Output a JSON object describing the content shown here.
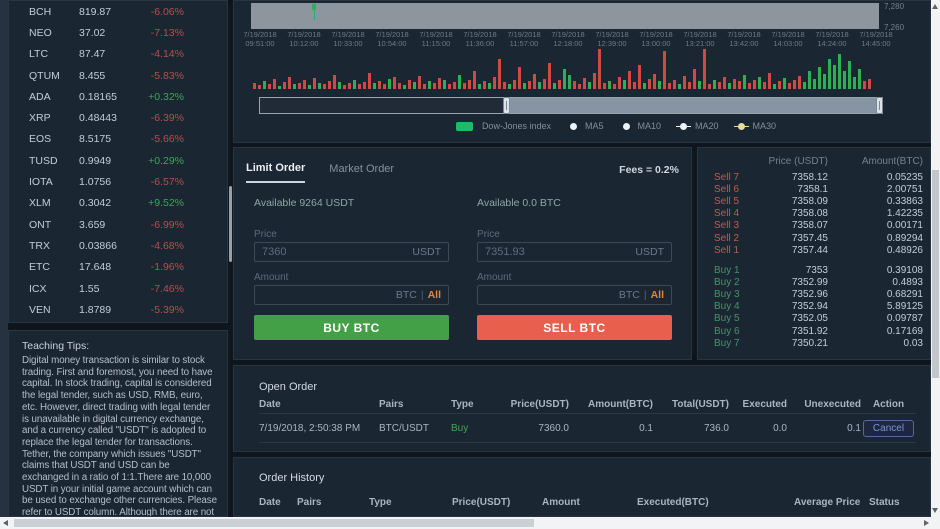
{
  "colors": {
    "up": "#2fae54",
    "down": "#cf4a43",
    "buy_button": "#43a047",
    "sell_button": "#e95f4d",
    "accent_orange": "#e0863a",
    "index_green": "#25b864",
    "cancel_blue": "#7d94d4"
  },
  "sidebar": {
    "coins": [
      {
        "symbol": "BCH",
        "price": "819.87",
        "change": "-6.06%",
        "dir": "down"
      },
      {
        "symbol": "NEO",
        "price": "37.02",
        "change": "-7.13%",
        "dir": "down"
      },
      {
        "symbol": "LTC",
        "price": "87.47",
        "change": "-4.14%",
        "dir": "down"
      },
      {
        "symbol": "QTUM",
        "price": "8.455",
        "change": "-5.83%",
        "dir": "down"
      },
      {
        "symbol": "ADA",
        "price": "0.18165",
        "change": "+0.32%",
        "dir": "up"
      },
      {
        "symbol": "XRP",
        "price": "0.48443",
        "change": "-6.39%",
        "dir": "down"
      },
      {
        "symbol": "EOS",
        "price": "8.5175",
        "change": "-5.66%",
        "dir": "down"
      },
      {
        "symbol": "TUSD",
        "price": "0.9949",
        "change": "+0.29%",
        "dir": "up"
      },
      {
        "symbol": "IOTA",
        "price": "1.0756",
        "change": "-6.57%",
        "dir": "down"
      },
      {
        "symbol": "XLM",
        "price": "0.3042",
        "change": "+9.52%",
        "dir": "up"
      },
      {
        "symbol": "ONT",
        "price": "3.659",
        "change": "-6.99%",
        "dir": "down"
      },
      {
        "symbol": "TRX",
        "price": "0.03866",
        "change": "-4.68%",
        "dir": "down"
      },
      {
        "symbol": "ETC",
        "price": "17.648",
        "change": "-1.96%",
        "dir": "down"
      },
      {
        "symbol": "ICX",
        "price": "1.55",
        "change": "-7.46%",
        "dir": "down"
      },
      {
        "symbol": "VEN",
        "price": "1.8789",
        "change": "-5.39%",
        "dir": "down"
      }
    ],
    "tips_title": "Teaching Tips:",
    "tips_body": "Digital money transaction is similar to stock trading. First and foremost, you need to have capital. In stock trading, capital is considered the legal tender, such as USD, RMB, euro, etc. However, direct trading with legal tender is unavailable in digital currency exchange, and a currency called \"USDT\" is adopted to replace the legal tender for transactions. Tether, the company which issues \"USDT\" claims that USDT and USD can be exchanged in a ratio of 1:1.There are 10,000 USDT in your initial game account which can be used to exchange other currencies. Please refer to USDT column. Although there are not many kinds of currencies in USDT column, most are very popular ones. What should you do if you need to buy some"
  },
  "chart": {
    "y_labels": [
      "7,280",
      "7,260"
    ],
    "x_ticks": [
      {
        "date": "7/19/2018",
        "time": "09:51:00"
      },
      {
        "date": "7/19/2018",
        "time": "10:12:00"
      },
      {
        "date": "7/19/2018",
        "time": "10:33:00"
      },
      {
        "date": "7/19/2018",
        "time": "10:54:00"
      },
      {
        "date": "7/19/2018",
        "time": "11:15:00"
      },
      {
        "date": "7/19/2018",
        "time": "11:36:00"
      },
      {
        "date": "7/19/2018",
        "time": "11:57:00"
      },
      {
        "date": "7/19/2018",
        "time": "12:18:00"
      },
      {
        "date": "7/19/2018",
        "time": "12:39:00"
      },
      {
        "date": "7/19/2018",
        "time": "13:00:00"
      },
      {
        "date": "7/19/2018",
        "time": "13:21:00"
      },
      {
        "date": "7/19/2018",
        "time": "13:42:00"
      },
      {
        "date": "7/19/2018",
        "time": "14:03:00"
      },
      {
        "date": "7/19/2018",
        "time": "14:24:00"
      },
      {
        "date": "7/19/2018",
        "time": "14:45:00"
      }
    ],
    "legend": {
      "index_label": "Dow-Jones index",
      "ma_items": [
        {
          "label": "MA5",
          "color": "#eef2f6",
          "line": false
        },
        {
          "label": "MA10",
          "color": "#eef2f6",
          "line": false
        },
        {
          "label": "MA20",
          "color": "#eef2f6",
          "line": true
        },
        {
          "label": "MA30",
          "color": "#e8dc9a",
          "line": true
        }
      ]
    },
    "volume_bars": [
      "6r",
      "4r",
      "8g",
      "5r",
      "10r",
      "3g",
      "7r",
      "12r",
      "5g",
      "6r",
      "9r",
      "4g",
      "11r",
      "6g",
      "5r",
      "8r",
      "14r",
      "7g",
      "4r",
      "6r",
      "9g",
      "5r",
      "7r",
      "16r",
      "6g",
      "8r",
      "5r",
      "10g",
      "12r",
      "6r",
      "4g",
      "9r",
      "7g",
      "13r",
      "5r",
      "8g",
      "6r",
      "11r",
      "9g",
      "5r",
      "7r",
      "14g",
      "6r",
      "9r",
      "18r",
      "5g",
      "8r",
      "6g",
      "12r",
      "30r",
      "7r",
      "5g",
      "9r",
      "22r",
      "6g",
      "8r",
      "15r",
      "7g",
      "10r",
      "26r",
      "6g",
      "9r",
      "20g",
      "14g",
      "8r",
      "5r",
      "11r",
      "7g",
      "16r",
      "40r",
      "6r",
      "8g",
      "5r",
      "12r",
      "9g",
      "18r",
      "7r",
      "24r",
      "6g",
      "10r",
      "15r",
      "8g",
      "38r",
      "6r",
      "9r",
      "5g",
      "13r",
      "7r",
      "20r",
      "8g",
      "42r",
      "5r",
      "9g",
      "7r",
      "12r",
      "6g",
      "10r",
      "8r",
      "14g",
      "6r",
      "9r",
      "12g",
      "7r",
      "16r",
      "5g",
      "8r",
      "11g",
      "6r",
      "9r",
      "13r",
      "7g",
      "18g",
      "10g",
      "22g",
      "15g",
      "30g",
      "24g",
      "35g",
      "18g",
      "28g",
      "12g",
      "20g",
      "8r",
      "10r"
    ]
  },
  "order_entry": {
    "tabs": [
      "Limit Order",
      "Market Order"
    ],
    "fees": "Fees = 0.2%",
    "buy": {
      "available": "Available 9264 USDT",
      "price_label": "Price",
      "price_value": "7360",
      "price_unit": "USDT",
      "amount_label": "Amount",
      "amount_unit": "BTC",
      "all_label": "All",
      "button": "BUY BTC"
    },
    "sell": {
      "available": "Available 0.0 BTC",
      "price_label": "Price",
      "price_value": "7351.93",
      "price_unit": "USDT",
      "amount_label": "Amount",
      "amount_unit": "BTC",
      "all_label": "All",
      "button": "SELL BTC"
    }
  },
  "order_book": {
    "headers": [
      "Price (USDT)",
      "Amount(BTC)"
    ],
    "sells": [
      {
        "label": "Sell 7",
        "price": "7358.12",
        "amount": "0.05235"
      },
      {
        "label": "Sell 6",
        "price": "7358.1",
        "amount": "2.00751"
      },
      {
        "label": "Sell 5",
        "price": "7358.09",
        "amount": "0.33863"
      },
      {
        "label": "Sell 4",
        "price": "7358.08",
        "amount": "1.42235"
      },
      {
        "label": "Sell 3",
        "price": "7358.07",
        "amount": "0.00171"
      },
      {
        "label": "Sell 2",
        "price": "7357.45",
        "amount": "0.89294"
      },
      {
        "label": "Sell 1",
        "price": "7357.44",
        "amount": "0.48926"
      }
    ],
    "buys": [
      {
        "label": "Buy 1",
        "price": "7353",
        "amount": "0.39108"
      },
      {
        "label": "Buy 2",
        "price": "7352.99",
        "amount": "0.4893"
      },
      {
        "label": "Buy 3",
        "price": "7352.96",
        "amount": "0.68291"
      },
      {
        "label": "Buy 4",
        "price": "7352.94",
        "amount": "5.89125"
      },
      {
        "label": "Buy 5",
        "price": "7352.05",
        "amount": "0.09787"
      },
      {
        "label": "Buy 6",
        "price": "7351.92",
        "amount": "0.17169"
      },
      {
        "label": "Buy 7",
        "price": "7350.21",
        "amount": "0.03"
      }
    ]
  },
  "open_order": {
    "title": "Open Order",
    "headers": [
      "Date",
      "Pairs",
      "Type",
      "Price(USDT)",
      "Amount(BTC)",
      "Total(USDT)",
      "Executed",
      "Unexecuted",
      "Action"
    ],
    "rows": [
      {
        "date": "7/19/2018, 2:50:38 PM",
        "pairs": "BTC/USDT",
        "type": "Buy",
        "price": "7360.0",
        "amount": "0.1",
        "total": "736.0",
        "executed": "0.0",
        "unexecuted": "0.1",
        "action": "Cancel"
      }
    ]
  },
  "order_history": {
    "title": "Order History",
    "headers": [
      "Date",
      "Pairs",
      "Type",
      "Price(USDT)",
      "Amount",
      "Executed(BTC)",
      "Average Price",
      "Status"
    ]
  }
}
